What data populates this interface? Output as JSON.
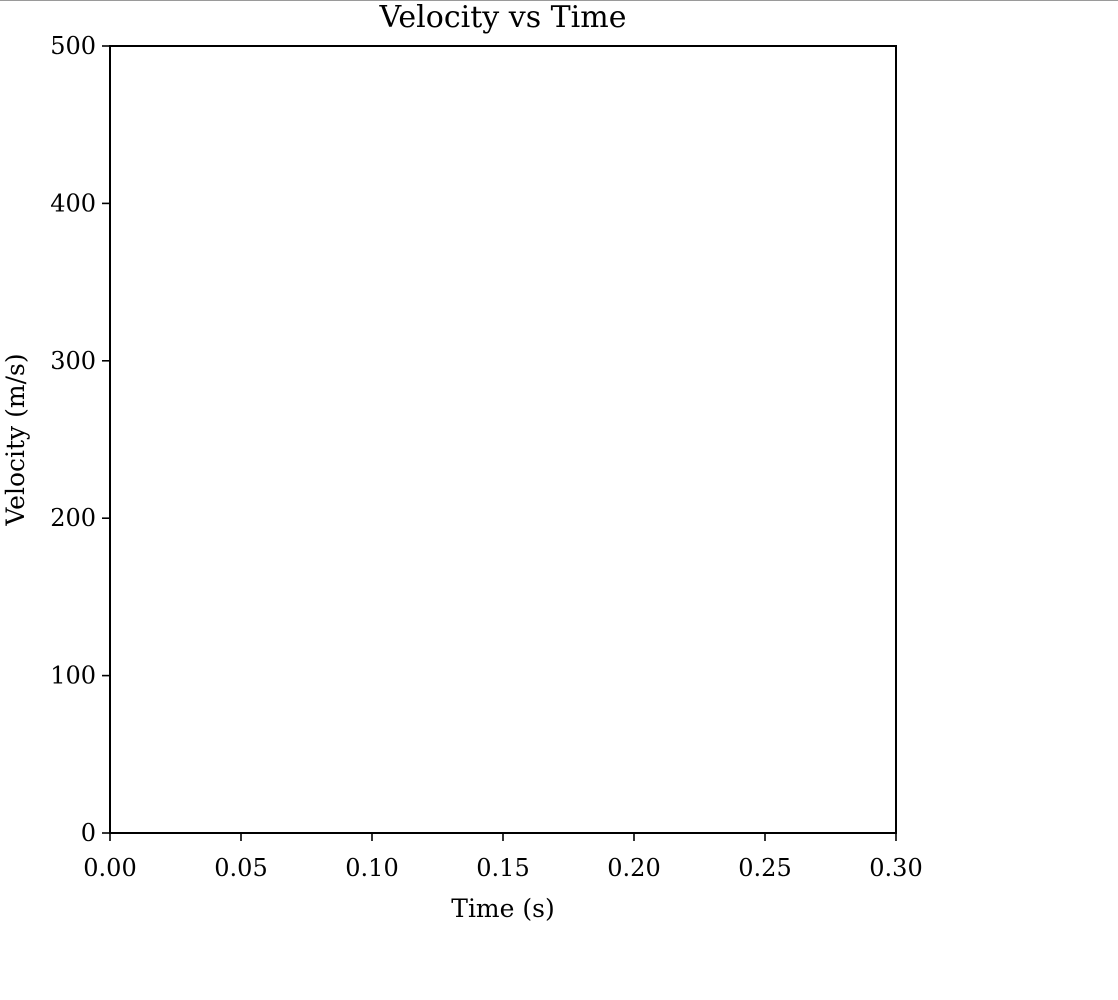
{
  "chart_data": {
    "type": "line",
    "title": "Velocity vs Time",
    "xlabel": "Time (s)",
    "ylabel": "Velocity (m/s)",
    "xlim": [
      0.0,
      0.3
    ],
    "ylim": [
      0,
      500
    ],
    "xticks": [
      "0.00",
      "0.05",
      "0.10",
      "0.15",
      "0.20",
      "0.25",
      "0.30"
    ],
    "xtick_values": [
      0.0,
      0.05,
      0.1,
      0.15,
      0.2,
      0.25,
      0.3
    ],
    "yticks": [
      "0",
      "100",
      "200",
      "300",
      "400",
      "500"
    ],
    "ytick_values": [
      0,
      100,
      200,
      300,
      400,
      500
    ],
    "grid": false,
    "series": []
  }
}
